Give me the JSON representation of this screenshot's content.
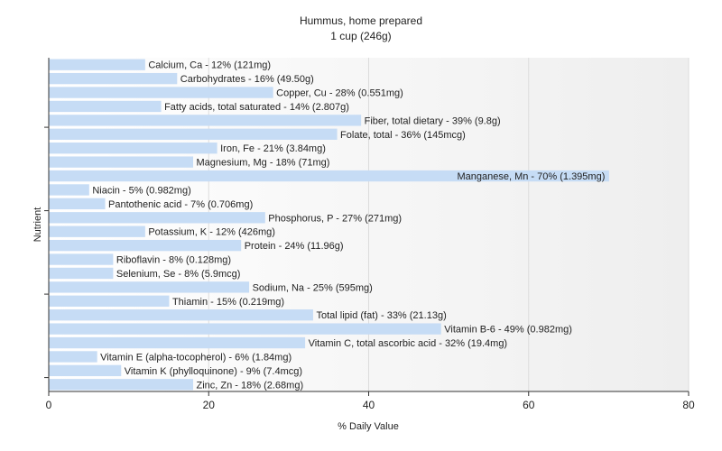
{
  "chart_data": {
    "type": "bar",
    "orientation": "horizontal",
    "title": "Hummus, home prepared",
    "subtitle": "1 cup (246g)",
    "xlabel": "% Daily Value",
    "ylabel": "Nutrient",
    "xlim": [
      0,
      80
    ],
    "xticks": [
      "0",
      "20",
      "40",
      "60",
      "80"
    ],
    "grid": true,
    "bar_color": "#c6dcf5",
    "categories": [
      "Calcium, Ca",
      "Carbohydrates",
      "Copper, Cu",
      "Fatty acids, total saturated",
      "Fiber, total dietary",
      "Folate, total",
      "Iron, Fe",
      "Magnesium, Mg",
      "Manganese, Mn",
      "Niacin",
      "Pantothenic acid",
      "Phosphorus, P",
      "Potassium, K",
      "Protein",
      "Riboflavin",
      "Selenium, Se",
      "Sodium, Na",
      "Thiamin",
      "Total lipid (fat)",
      "Vitamin B-6",
      "Vitamin C, total ascorbic acid",
      "Vitamin E (alpha-tocopherol)",
      "Vitamin K (phylloquinone)",
      "Zinc, Zn"
    ],
    "values": [
      12,
      16,
      28,
      14,
      39,
      36,
      21,
      18,
      70,
      5,
      7,
      27,
      12,
      24,
      8,
      8,
      25,
      15,
      33,
      49,
      32,
      6,
      9,
      18
    ],
    "labels": [
      "Calcium, Ca - 12% (121mg)",
      "Carbohydrates - 16% (49.50g)",
      "Copper, Cu - 28% (0.551mg)",
      "Fatty acids, total saturated - 14% (2.807g)",
      "Fiber, total dietary - 39% (9.8g)",
      "Folate, total - 36% (145mcg)",
      "Iron, Fe - 21% (3.84mg)",
      "Magnesium, Mg - 18% (71mg)",
      "Manganese, Mn - 70% (1.395mg)",
      "Niacin - 5% (0.982mg)",
      "Pantothenic acid - 7% (0.706mg)",
      "Phosphorus, P - 27% (271mg)",
      "Potassium, K - 12% (426mg)",
      "Protein - 24% (11.96g)",
      "Riboflavin - 8% (0.128mg)",
      "Selenium, Se - 8% (5.9mcg)",
      "Sodium, Na - 25% (595mg)",
      "Thiamin - 15% (0.219mg)",
      "Total lipid (fat) - 33% (21.13g)",
      "Vitamin B-6 - 49% (0.982mg)",
      "Vitamin C, total ascorbic acid - 32% (19.4mg)",
      "Vitamin E (alpha-tocopherol) - 6% (1.84mg)",
      "Vitamin K (phylloquinone) - 9% (7.4mcg)",
      "Zinc, Zn - 18% (2.68mg)"
    ]
  }
}
